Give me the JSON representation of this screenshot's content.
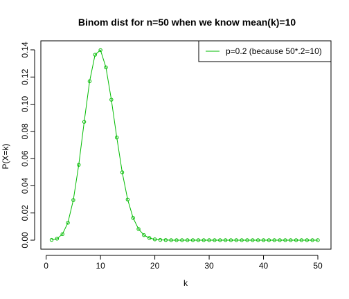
{
  "chart_data": {
    "type": "line",
    "title": "Binom dist for n=50 when we know mean(k)=10",
    "xlabel": "k",
    "ylabel": "P(X=k)",
    "xlim": [
      1,
      50
    ],
    "ylim": [
      0,
      0.14
    ],
    "xticks": [
      0,
      10,
      20,
      30,
      40,
      50
    ],
    "xtick_labels": [
      "0",
      "10",
      "20",
      "30",
      "40",
      "50"
    ],
    "yticks": [
      0.0,
      0.02,
      0.04,
      0.06,
      0.08,
      0.1,
      0.12,
      0.14
    ],
    "ytick_labels": [
      "0.00",
      "0.02",
      "0.04",
      "0.06",
      "0.08",
      "0.10",
      "0.12",
      "0.14"
    ],
    "grid": false,
    "legend_position": "top-right",
    "series": [
      {
        "name": "p=0.2 (because 50*.2=10)",
        "color": "#00bb00",
        "marker": "open-circle",
        "x": [
          1,
          2,
          3,
          4,
          5,
          6,
          7,
          8,
          9,
          10,
          11,
          12,
          13,
          14,
          15,
          16,
          17,
          18,
          19,
          20,
          21,
          22,
          23,
          24,
          25,
          26,
          27,
          28,
          29,
          30,
          31,
          32,
          33,
          34,
          35,
          36,
          37,
          38,
          39,
          40,
          41,
          42,
          43,
          44,
          45,
          46,
          47,
          48,
          49,
          50
        ],
        "y": [
          0.0002,
          0.0011,
          0.0044,
          0.0128,
          0.0295,
          0.0554,
          0.087,
          0.1169,
          0.1364,
          0.1398,
          0.1271,
          0.1033,
          0.0755,
          0.0499,
          0.0299,
          0.0164,
          0.0082,
          0.0037,
          0.0016,
          0.0006,
          0.0002,
          0.0001,
          0.0,
          0.0,
          0.0,
          0.0,
          0.0,
          0.0,
          0.0,
          0.0,
          0.0,
          0.0,
          0.0,
          0.0,
          0.0,
          0.0,
          0.0,
          0.0,
          0.0,
          0.0,
          0.0,
          0.0,
          0.0,
          0.0,
          0.0,
          0.0,
          0.0,
          0.0,
          0.0,
          0.0
        ]
      }
    ]
  }
}
